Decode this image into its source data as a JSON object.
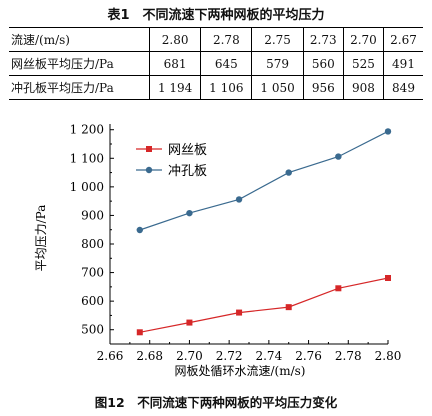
{
  "table": {
    "caption": "表1　不同流速下两种网板的平均压力",
    "rows": [
      {
        "header": "流速/(m/s)",
        "cells": [
          "2.80",
          "2.78",
          "2.75",
          "2.73",
          "2.70",
          "2.67"
        ]
      },
      {
        "header": "网丝板平均压力/Pa",
        "cells": [
          "681",
          "645",
          "579",
          "560",
          "525",
          "491"
        ]
      },
      {
        "header": "冲孔板平均压力/Pa",
        "cells": [
          "1 194",
          "1 106",
          "1 050",
          "956",
          "908",
          "849"
        ]
      }
    ]
  },
  "figure_caption": "图12　不同流速下两种网板的平均压力变化",
  "chart_data": {
    "type": "line",
    "xlabel": "网板处循环水流速/(m/s)",
    "ylabel": "平均压力/Pa",
    "xlim": [
      2.66,
      2.8
    ],
    "ylim": [
      450,
      1220
    ],
    "xticks": [
      "2.66",
      "2.68",
      "2.70",
      "2.72",
      "2.74",
      "2.76",
      "2.78",
      "2.80"
    ],
    "xtick_values": [
      2.66,
      2.68,
      2.7,
      2.72,
      2.74,
      2.76,
      2.78,
      2.8
    ],
    "yticks": [
      "500",
      "600",
      "700",
      "800",
      "900",
      "1 000",
      "1 100",
      "1 200"
    ],
    "ytick_values": [
      500,
      600,
      700,
      800,
      900,
      1000,
      1100,
      1200
    ],
    "legend_position": "top-left",
    "series": [
      {
        "name": "网丝板",
        "marker": "square",
        "color": "#d62728",
        "x": [
          2.675,
          2.7,
          2.725,
          2.75,
          2.775,
          2.8
        ],
        "y": [
          491,
          525,
          560,
          579,
          645,
          681
        ]
      },
      {
        "name": "冲孔板",
        "marker": "circle",
        "color": "#3a6a8f",
        "x": [
          2.675,
          2.7,
          2.725,
          2.75,
          2.775,
          2.8
        ],
        "y": [
          849,
          908,
          956,
          1050,
          1106,
          1194
        ]
      }
    ]
  }
}
